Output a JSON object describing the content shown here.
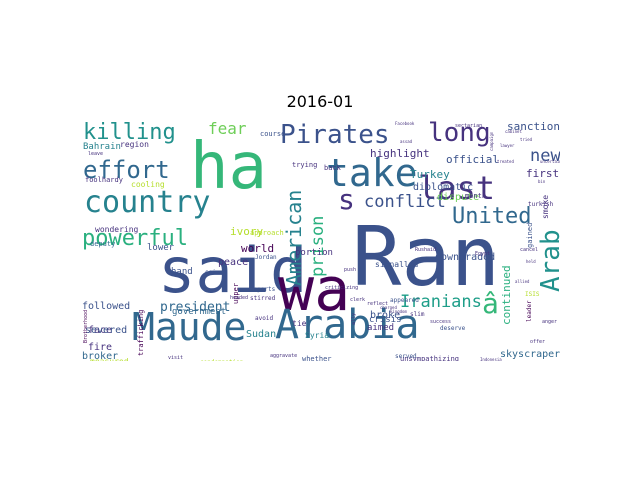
{
  "chart_data": {
    "type": "wordcloud",
    "title": "2016-01",
    "words": [
      {
        "text": "Ran",
        "color": "#3b528b"
      },
      {
        "text": "said",
        "color": "#3b528b"
      },
      {
        "text": "wa",
        "color": "#440154"
      },
      {
        "text": "ha",
        "color": "#35b779"
      },
      {
        "text": "Maude",
        "color": "#31688e"
      },
      {
        "text": "Arabia",
        "color": "#31688e"
      },
      {
        "text": "take",
        "color": "#31688e"
      },
      {
        "text": "country",
        "color": "#26828e"
      },
      {
        "text": "last",
        "color": "#46327e"
      },
      {
        "text": "Pirates",
        "color": "#3b528b"
      },
      {
        "text": "long",
        "color": "#46327e"
      },
      {
        "text": "killing",
        "color": "#21918c"
      },
      {
        "text": "effort",
        "color": "#31688e"
      },
      {
        "text": "United",
        "color": "#31688e"
      },
      {
        "text": "powerful",
        "color": "#2ab07f"
      },
      {
        "text": "s",
        "color": "#46327e"
      },
      {
        "text": "â",
        "color": "#35b779"
      },
      {
        "text": "Arab",
        "color": "#21918c"
      },
      {
        "text": "American",
        "color": "#26828e"
      },
      {
        "text": "conflict",
        "color": "#3b528b"
      },
      {
        "text": "Iranians",
        "color": "#1f9e89"
      },
      {
        "text": "prison",
        "color": "#2ab07f"
      },
      {
        "text": "new",
        "color": "#3b528b"
      },
      {
        "text": "fear",
        "color": "#6ece58"
      },
      {
        "text": "president",
        "color": "#31688e"
      },
      {
        "text": "Turkey",
        "color": "#26828e"
      },
      {
        "text": "highlight",
        "color": "#46327e"
      },
      {
        "text": "official",
        "color": "#3b528b"
      },
      {
        "text": "sanction",
        "color": "#3b528b"
      },
      {
        "text": "first",
        "color": "#46327e"
      },
      {
        "text": "ivory",
        "color": "#b5de2b"
      },
      {
        "text": "world",
        "color": "#440154"
      },
      {
        "text": "Sudan",
        "color": "#26828e"
      },
      {
        "text": "face",
        "color": "#46327e"
      },
      {
        "text": "fire",
        "color": "#46327e"
      },
      {
        "text": "broker",
        "color": "#31688e"
      },
      {
        "text": "skyscraper",
        "color": "#31688e"
      },
      {
        "text": "continued",
        "color": "#2ab07f"
      },
      {
        "text": "followed",
        "color": "#3b528b"
      },
      {
        "text": "hand",
        "color": "#3b528b"
      },
      {
        "text": "peace",
        "color": "#46327e"
      },
      {
        "text": "severed",
        "color": "#3b528b"
      },
      {
        "text": "diplomatic",
        "color": "#3b528b"
      },
      {
        "text": "dispute",
        "color": "#6ece58"
      },
      {
        "text": "downgraded",
        "color": "#3b528b"
      },
      {
        "text": "broke",
        "color": "#3b528b"
      },
      {
        "text": "aimed",
        "color": "#46327e"
      },
      {
        "text": "crisis",
        "color": "#3b528b"
      },
      {
        "text": "portion",
        "color": "#46327e"
      },
      {
        "text": "lower",
        "color": "#3b528b"
      },
      {
        "text": "government",
        "color": "#31688e"
      },
      {
        "text": "measured",
        "color": "#b5de2b"
      },
      {
        "text": "smoke",
        "color": "#46327e"
      },
      {
        "text": "Syria",
        "color": "#26828e"
      },
      {
        "text": "tie",
        "color": "#46327e"
      },
      {
        "text": "cooling",
        "color": "#b5de2b"
      },
      {
        "text": "Bahrain",
        "color": "#26828e"
      },
      {
        "text": "region",
        "color": "#46327e"
      },
      {
        "text": "wondering",
        "color": "#46327e"
      },
      {
        "text": "signalled",
        "color": "#3b528b"
      },
      {
        "text": "whether",
        "color": "#3b528b"
      },
      {
        "text": "foolhardy",
        "color": "#46327e"
      },
      {
        "text": "trafficking",
        "color": "#440154"
      },
      {
        "text": "unsympathizing",
        "color": "#46327e"
      },
      {
        "text": "deputy",
        "color": "#31688e"
      },
      {
        "text": "approach",
        "color": "#b5de2b"
      },
      {
        "text": "month",
        "color": "#46327e"
      },
      {
        "text": "gained",
        "color": "#3b528b"
      },
      {
        "text": "leader",
        "color": "#440154"
      },
      {
        "text": "trying",
        "color": "#46327e"
      },
      {
        "text": "back",
        "color": "#46327e"
      },
      {
        "text": "course",
        "color": "#3b528b"
      },
      {
        "text": "upper",
        "color": "#440154"
      },
      {
        "text": "Jordan",
        "color": "#3b528b"
      },
      {
        "text": "avoid",
        "color": "#46327e"
      },
      {
        "text": "appeared",
        "color": "#3b528b"
      },
      {
        "text": "served",
        "color": "#3b528b"
      },
      {
        "text": "deserve",
        "color": "#3b528b"
      },
      {
        "text": "condemnation",
        "color": "#b5de2b"
      },
      {
        "text": "Reports",
        "color": "#3b528b"
      },
      {
        "text": "stirred",
        "color": "#46327e"
      },
      {
        "text": "seized",
        "color": "#3b528b"
      },
      {
        "text": "slim",
        "color": "#46327e"
      },
      {
        "text": "aggravate",
        "color": "#46327e"
      },
      {
        "text": "visit",
        "color": "#46327e"
      },
      {
        "text": "Brotherhood",
        "color": "#440154"
      },
      {
        "text": "Rushaid",
        "color": "#46327e"
      },
      {
        "text": "sectarian",
        "color": "#46327e"
      },
      {
        "text": "turkish",
        "color": "#46327e"
      },
      {
        "text": "criticizing",
        "color": "#46327e"
      },
      {
        "text": "clerk",
        "color": "#46327e"
      },
      {
        "text": "reflect",
        "color": "#46327e"
      },
      {
        "text": "charged",
        "color": "#46327e"
      },
      {
        "text": "success",
        "color": "#46327e"
      },
      {
        "text": "Egypt",
        "color": "#46327e"
      },
      {
        "text": "offer",
        "color": "#46327e"
      },
      {
        "text": "anger",
        "color": "#46327e"
      },
      {
        "text": "push",
        "color": "#46327e"
      },
      {
        "text": "Indonesia",
        "color": "#46327e"
      },
      {
        "text": "kingdom",
        "color": "#46327e"
      },
      {
        "text": "ally",
        "color": "#46327e"
      },
      {
        "text": "headed",
        "color": "#46327e"
      },
      {
        "text": "cabinet",
        "color": "#46327e"
      },
      {
        "text": "leave",
        "color": "#46327e"
      },
      {
        "text": "cancel",
        "color": "#46327e"
      },
      {
        "text": "treated",
        "color": "#46327e"
      },
      {
        "text": "campaign",
        "color": "#46327e"
      },
      {
        "text": "allied",
        "color": "#46327e"
      },
      {
        "text": "Facebook",
        "color": "#46327e"
      },
      {
        "text": "tried",
        "color": "#46327e"
      },
      {
        "text": "lawyer",
        "color": "#46327e"
      },
      {
        "text": "uncertain",
        "color": "#46327e"
      },
      {
        "text": "assad",
        "color": "#46327e"
      },
      {
        "text": "bin",
        "color": "#46327e"
      },
      {
        "text": "ISIS",
        "color": "#b5de2b"
      },
      {
        "text": "held",
        "color": "#46327e"
      }
    ]
  }
}
